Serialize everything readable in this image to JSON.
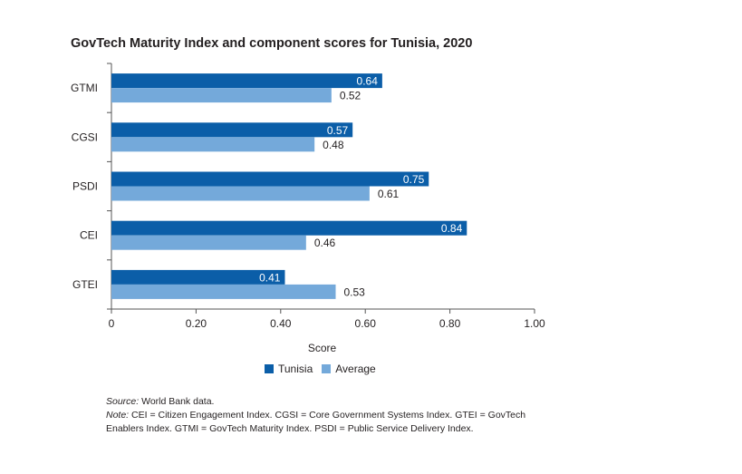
{
  "title": "GovTech Maturity Index and component scores for Tunisia, 2020",
  "colors": {
    "tunisia": "#0b5ea8",
    "average": "#74a9da",
    "axis": "#555555"
  },
  "legend": {
    "tunisia": "Tunisia",
    "average": "Average"
  },
  "notes": {
    "source_label": "Source:",
    "source_text": " World Bank data.",
    "note_label": "Note:",
    "note_text": " CEI = Citizen Engagement Index. CGSI = Core Government Systems Index. GTEI = GovTech Enablers Index. GTMI = GovTech Maturity Index. PSDI = Public Service Delivery Index."
  },
  "chart_data": {
    "type": "bar",
    "orientation": "horizontal",
    "categories": [
      "GTMI",
      "CGSI",
      "PSDI",
      "CEI",
      "GTEI"
    ],
    "series": [
      {
        "name": "Tunisia",
        "values": [
          0.64,
          0.57,
          0.75,
          0.84,
          0.41
        ]
      },
      {
        "name": "Average",
        "values": [
          0.52,
          0.48,
          0.61,
          0.46,
          0.53
        ]
      }
    ],
    "value_labels": [
      [
        "0.64",
        "0.57",
        "0.75",
        "0.84",
        "0.41"
      ],
      [
        "0.52",
        "0.48",
        "0.61",
        "0.46",
        "0.53"
      ]
    ],
    "xlabel": "Score",
    "ylabel": "",
    "xlim": [
      0,
      1
    ],
    "xticks": [
      0,
      0.2,
      0.4,
      0.6,
      0.8,
      1.0
    ],
    "xtick_labels": [
      "0",
      "0.20",
      "0.40",
      "0.60",
      "0.80",
      "1.00"
    ],
    "grid": false,
    "legend_position": "bottom"
  }
}
